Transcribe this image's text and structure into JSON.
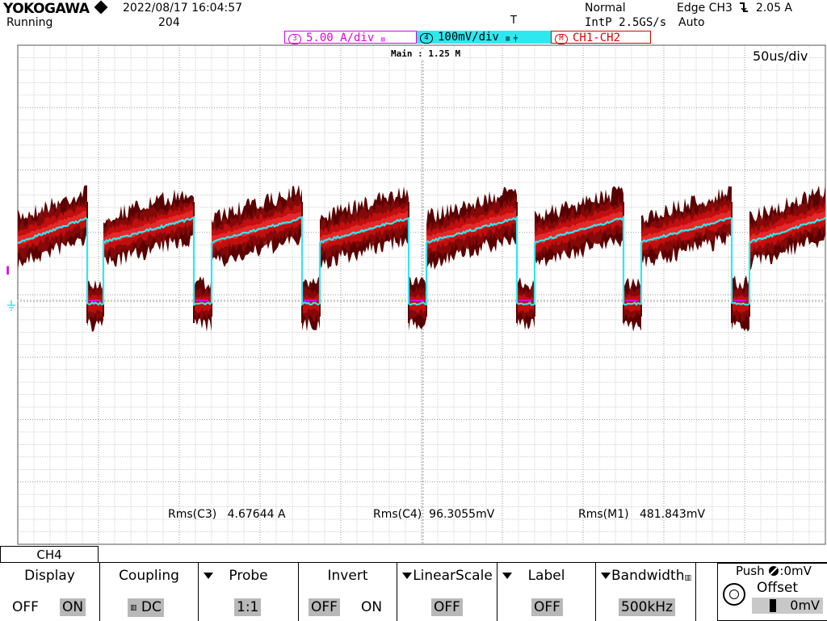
{
  "header": {
    "brand": "YOKOGAWA",
    "datetime": "2022/08/17 16:04:57",
    "run_state": "Running",
    "acq_count": "204",
    "acq_mode": "Normal",
    "sample_rate": "IntP 2.5GS/s",
    "trigger_source": "Edge CH3",
    "trigger_level": "2.05 A",
    "trigger_mode": "Auto",
    "trigger_marker": "T"
  },
  "channel_bar": {
    "ch3": {
      "num": "3",
      "scale": "5.00 A/div"
    },
    "ch4": {
      "num": "4",
      "scale": "100mV/div"
    },
    "m1": {
      "num": "M",
      "label": "CH1-CH2"
    }
  },
  "display": {
    "timebase": "50us/div",
    "main_length": "Main : 1.25 M",
    "level_marker": "I"
  },
  "measurements": [
    {
      "label": "Rms(C3)",
      "value": "4.67644 A"
    },
    {
      "label": "Rms(C4)",
      "value": "96.3055mV"
    },
    {
      "label": "Rms(M1)",
      "value": "481.843mV"
    }
  ],
  "menu": {
    "tab": "CH4",
    "display": {
      "title": "Display",
      "off": "OFF",
      "on": "ON",
      "selected": "ON"
    },
    "coupling": {
      "title": "Coupling",
      "value": "DC"
    },
    "probe": {
      "title": "Probe",
      "value": "1:1"
    },
    "invert": {
      "title": "Invert",
      "off": "OFF",
      "on": "ON",
      "selected": "OFF"
    },
    "linear": {
      "title": "LinearScale",
      "value": "OFF"
    },
    "label": {
      "title": "Label",
      "value": "OFF"
    },
    "bandwidth": {
      "title": "Bandwidth",
      "value": "500kHz"
    },
    "offset": {
      "push": "Push",
      "push_value": "0mV",
      "title": "Offset",
      "value": "0mV"
    }
  },
  "colors": {
    "ch3": "#e000e0",
    "ch4": "#2ee8f0",
    "math": "#c81010",
    "grid": "#9a9a9a"
  }
}
